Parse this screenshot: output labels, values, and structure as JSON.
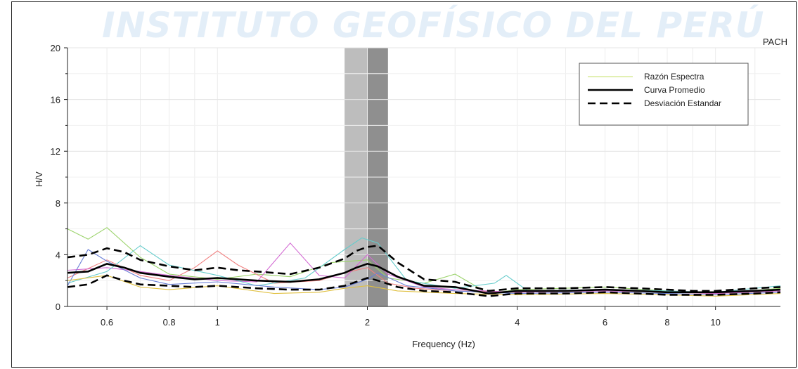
{
  "watermark": "INSTITUTO GEOFÍSICO DEL PERÚ",
  "chart_data": {
    "type": "line",
    "title": "",
    "station_label": "PACH",
    "xlabel": "Frequency (Hz)",
    "ylabel": "H/V",
    "x_scale": "log",
    "xlim": [
      0.5,
      13.5
    ],
    "ylim": [
      0,
      20
    ],
    "x_ticks": [
      0.6,
      0.8,
      1,
      2,
      4,
      6,
      8,
      10
    ],
    "x_tick_labels": [
      "0.6",
      "0.8",
      "1",
      "2",
      "4",
      "6",
      "8",
      "10"
    ],
    "y_ticks": [
      0,
      4,
      8,
      12,
      16,
      20
    ],
    "y_tick_labels": [
      "0",
      "4",
      "8",
      "12",
      "16",
      "20"
    ],
    "grid": true,
    "legend": {
      "position": "top-right",
      "entries": [
        {
          "label": "Razón Espectra",
          "style": "thin-yellow-green"
        },
        {
          "label": "Curva Promedio",
          "style": "solid-black"
        },
        {
          "label": "Desviación Estandar",
          "style": "dashed-black"
        }
      ]
    },
    "shaded_bands": [
      {
        "x_start": 1.8,
        "x_end": 2.0,
        "color": "#bdbdbd"
      },
      {
        "x_start": 2.0,
        "x_end": 2.2,
        "color": "#8f8f8f"
      }
    ],
    "series": [
      {
        "name": "Curva Promedio",
        "color": "#000000",
        "x": [
          0.5,
          0.55,
          0.6,
          0.65,
          0.7,
          0.8,
          0.9,
          1.0,
          1.1,
          1.2,
          1.4,
          1.6,
          1.8,
          1.9,
          2.0,
          2.1,
          2.3,
          2.6,
          3.0,
          3.5,
          4.0,
          5.0,
          6.0,
          7.0,
          8.0,
          9.0,
          10.0,
          12.0,
          13.5
        ],
        "y": [
          2.6,
          2.7,
          3.3,
          3.0,
          2.6,
          2.3,
          2.1,
          2.2,
          2.1,
          2.0,
          1.9,
          2.1,
          2.6,
          3.0,
          3.3,
          3.1,
          2.3,
          1.6,
          1.5,
          1.0,
          1.2,
          1.2,
          1.3,
          1.2,
          1.1,
          1.1,
          1.1,
          1.2,
          1.3
        ]
      },
      {
        "name": "Desviación Estandar",
        "color": "#000000",
        "x": [
          0.5,
          0.55,
          0.6,
          0.65,
          0.7,
          0.8,
          0.9,
          1.0,
          1.1,
          1.2,
          1.4,
          1.6,
          1.8,
          1.9,
          2.0,
          2.1,
          2.3,
          2.6,
          3.0,
          3.5,
          4.0,
          5.0,
          6.0,
          7.0,
          8.0,
          9.0,
          10.0,
          12.0,
          13.5
        ],
        "y": [
          3.8,
          4.0,
          4.5,
          4.2,
          3.6,
          3.1,
          2.8,
          3.0,
          2.8,
          2.7,
          2.5,
          3.0,
          3.7,
          4.3,
          4.6,
          4.7,
          3.4,
          2.1,
          1.9,
          1.2,
          1.4,
          1.4,
          1.5,
          1.4,
          1.3,
          1.2,
          1.2,
          1.4,
          1.5
        ]
      },
      {
        "name": "Desviación Estandar",
        "color": "#000000",
        "x": [
          0.5,
          0.55,
          0.6,
          0.65,
          0.7,
          0.8,
          0.9,
          1.0,
          1.1,
          1.2,
          1.4,
          1.6,
          1.8,
          1.9,
          2.0,
          2.1,
          2.3,
          2.6,
          3.0,
          3.5,
          4.0,
          5.0,
          6.0,
          7.0,
          8.0,
          9.0,
          10.0,
          12.0,
          13.5
        ],
        "y": [
          1.5,
          1.7,
          2.4,
          2.0,
          1.7,
          1.6,
          1.5,
          1.6,
          1.5,
          1.4,
          1.3,
          1.3,
          1.6,
          1.9,
          2.2,
          2.0,
          1.5,
          1.2,
          1.1,
          0.8,
          1.0,
          1.0,
          1.1,
          1.0,
          0.9,
          0.9,
          0.9,
          1.0,
          1.1
        ]
      },
      {
        "name": "Razón Espectra",
        "color": "#9bd36b",
        "x": [
          0.5,
          0.55,
          0.6,
          0.7,
          0.8,
          1.0,
          1.2,
          1.4,
          1.7,
          2.0,
          2.2,
          2.6,
          3.0,
          3.5,
          4.0,
          6.0,
          8.0,
          10.0,
          13.5
        ],
        "y": [
          6.0,
          5.2,
          6.1,
          3.8,
          2.5,
          2.1,
          2.5,
          2.3,
          3.4,
          3.6,
          2.2,
          1.8,
          2.5,
          1.0,
          1.3,
          1.5,
          1.2,
          1.0,
          1.4
        ]
      },
      {
        "name": "Razón Espectra",
        "color": "#f08080",
        "x": [
          0.5,
          0.6,
          0.7,
          0.8,
          0.9,
          1.0,
          1.1,
          1.3,
          1.6,
          1.8,
          2.0,
          2.2,
          2.5,
          3.0,
          4.0,
          6.0,
          8.0,
          10.0,
          13.5
        ],
        "y": [
          2.2,
          3.6,
          2.4,
          2.0,
          3.0,
          4.3,
          3.2,
          1.8,
          2.0,
          2.6,
          3.0,
          1.8,
          1.4,
          1.2,
          1.1,
          1.3,
          1.1,
          1.0,
          1.2
        ]
      },
      {
        "name": "Razón Espectra",
        "color": "#d36bd3",
        "x": [
          0.5,
          0.6,
          0.7,
          0.8,
          1.0,
          1.2,
          1.4,
          1.6,
          1.8,
          2.0,
          2.2,
          2.6,
          3.0,
          4.0,
          6.0,
          8.0,
          10.0,
          13.5
        ],
        "y": [
          2.8,
          3.0,
          2.7,
          2.4,
          2.0,
          1.9,
          4.9,
          2.4,
          2.2,
          4.0,
          2.5,
          1.5,
          1.3,
          1.1,
          1.2,
          1.1,
          1.0,
          1.2
        ]
      },
      {
        "name": "Razón Espectra",
        "color": "#66cccc",
        "x": [
          0.5,
          0.6,
          0.7,
          0.8,
          1.0,
          1.2,
          1.5,
          1.8,
          1.95,
          2.1,
          2.4,
          3.0,
          3.6,
          3.8,
          4.2,
          6.0,
          8.0,
          10.0,
          13.5
        ],
        "y": [
          1.8,
          2.7,
          4.7,
          3.2,
          2.4,
          1.6,
          2.2,
          4.4,
          5.3,
          4.9,
          2.0,
          1.4,
          1.8,
          2.4,
          1.2,
          1.3,
          1.2,
          1.1,
          1.6
        ]
      },
      {
        "name": "Razón Espectra",
        "color": "#6a7fd6",
        "x": [
          0.5,
          0.55,
          0.6,
          0.7,
          0.8,
          1.0,
          1.3,
          1.6,
          1.8,
          2.0,
          2.1,
          2.4,
          3.0,
          4.0,
          6.0,
          8.0,
          10.0,
          13.5
        ],
        "y": [
          1.6,
          4.4,
          3.5,
          2.2,
          1.7,
          1.9,
          1.5,
          1.3,
          1.5,
          2.1,
          2.6,
          1.6,
          1.2,
          1.0,
          1.1,
          1.0,
          0.9,
          1.1
        ]
      },
      {
        "name": "Razón Espectra",
        "color": "#e0c040",
        "x": [
          0.5,
          0.6,
          0.7,
          0.8,
          1.0,
          1.3,
          1.6,
          1.8,
          2.0,
          2.3,
          3.0,
          4.0,
          6.0,
          8.0,
          10.0,
          13.5
        ],
        "y": [
          2.0,
          2.4,
          1.5,
          1.3,
          1.6,
          1.0,
          1.1,
          1.4,
          1.6,
          1.2,
          1.0,
          0.9,
          1.0,
          0.9,
          0.8,
          1.0
        ]
      }
    ]
  }
}
